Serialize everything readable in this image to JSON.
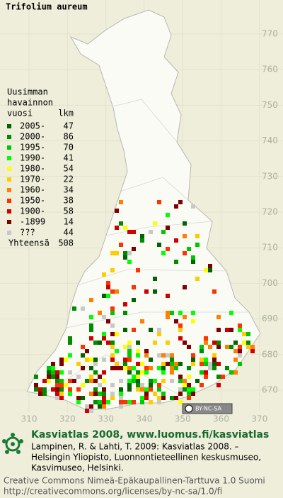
{
  "title": "Trifolium aureum",
  "legend": {
    "heading": [
      "Uusimman",
      "havainnon"
    ],
    "col_year": "vuosi",
    "col_count": "lkm",
    "rows": [
      {
        "label": "2005-",
        "count": 47,
        "color": "#006400"
      },
      {
        "label": "2000-",
        "count": 86,
        "color": "#008c00"
      },
      {
        "label": "1995-",
        "count": 70,
        "color": "#00c800"
      },
      {
        "label": "1990-",
        "count": 41,
        "color": "#00ff00"
      },
      {
        "label": "1980-",
        "count": 54,
        "color": "#ffff00"
      },
      {
        "label": "1970-",
        "count": 22,
        "color": "#ffcc00"
      },
      {
        "label": "1960-",
        "count": 34,
        "color": "#ff8000"
      },
      {
        "label": "1950-",
        "count": 38,
        "color": "#ff3300"
      },
      {
        "label": "1900-",
        "count": 58,
        "color": "#d00000"
      },
      {
        "label": "-1899",
        "count": 14,
        "color": "#800000"
      },
      {
        "label": "???",
        "count": 44,
        "color": "#c8c8c8"
      }
    ],
    "total": {
      "label": "Yhteensä",
      "count": 508
    }
  },
  "map": {
    "y_labels": [
      770,
      760,
      750,
      740,
      730,
      720,
      710,
      700,
      690,
      680,
      670
    ],
    "x_labels": [
      310,
      320,
      330,
      340,
      350,
      360,
      370
    ],
    "license_badge": "BY-NC-SA"
  },
  "footer": {
    "heading": "Kasviatlas 2008, www.luomus.fi/kasviatlas",
    "citation": [
      "Lampinen, R. & Lahti, T. 2009: Kasviatlas 2008. –",
      "Helsingin Yliopisto, Luonnontieteellinen keskusmuseo,",
      "Kasvimuseo, Helsinki."
    ],
    "license": [
      "Creative Commons Nimeä-Epäkaupallinen-Tarttuva 1.0 Suomi",
      "http://creativecommons.org/licenses/by-nc-sa/1.0/fi"
    ]
  }
}
